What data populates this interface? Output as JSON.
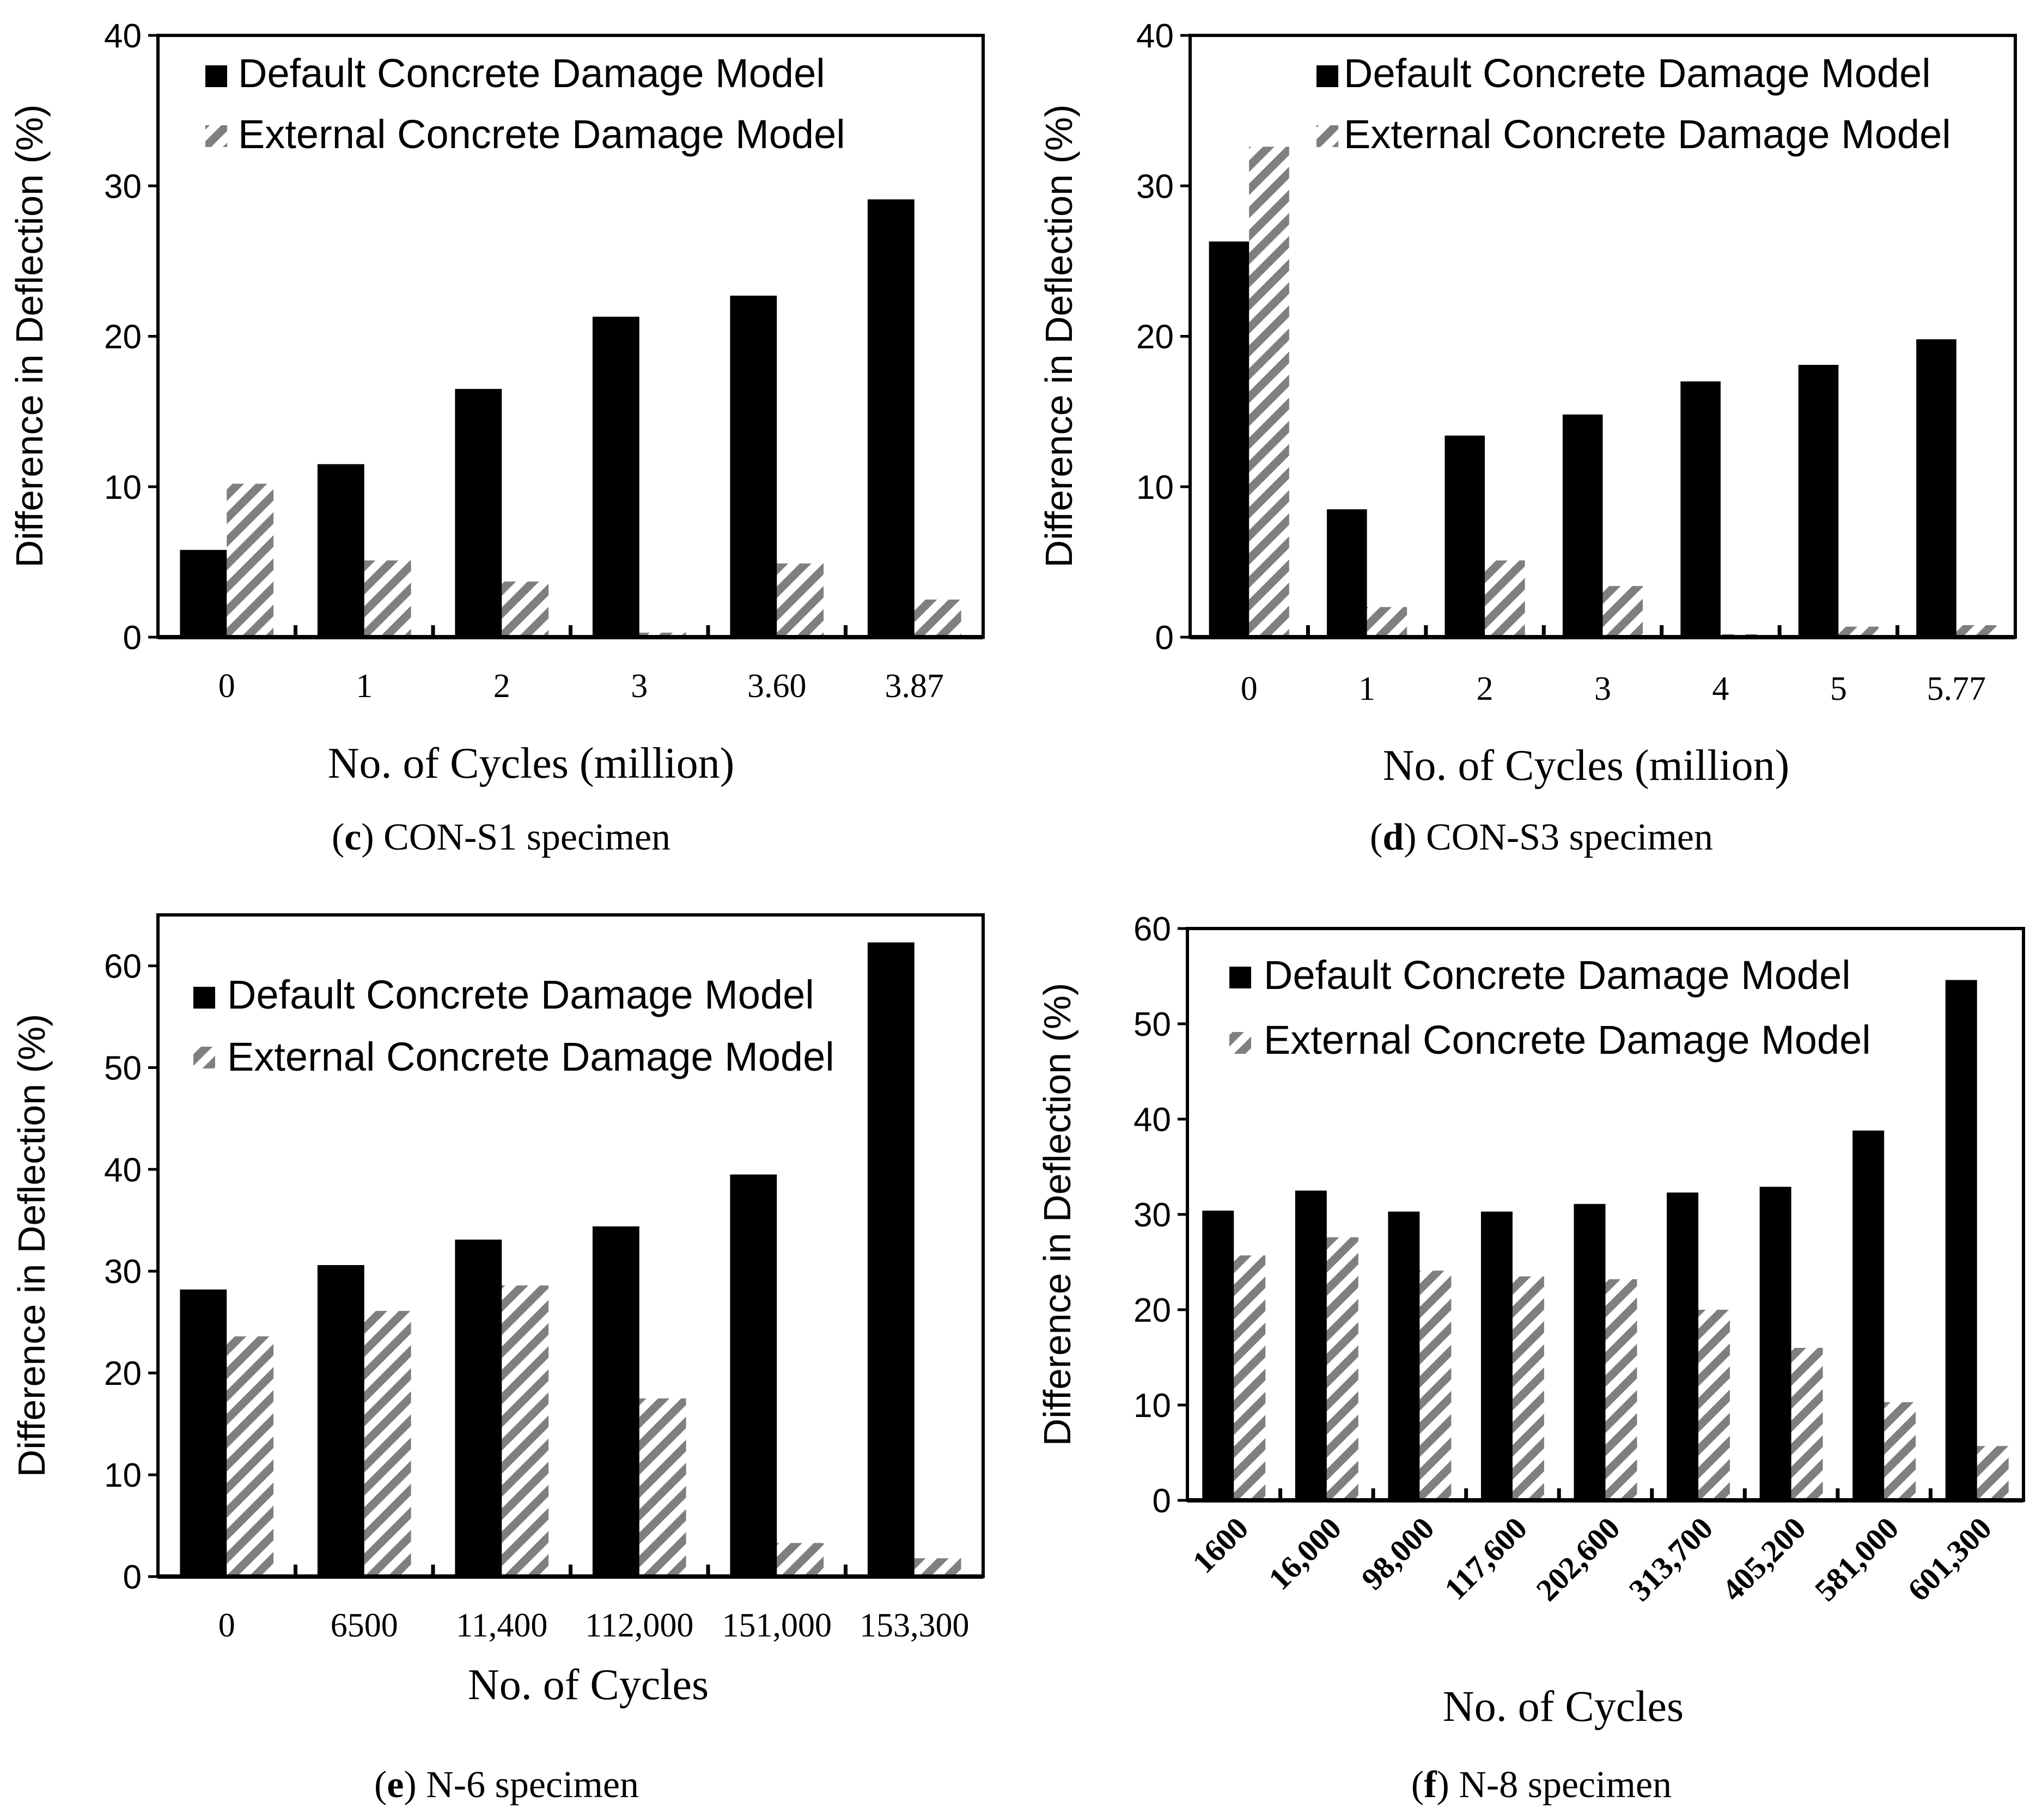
{
  "colors": {
    "default_series": "#000000",
    "external_stripe": "#7f7f7f",
    "axis": "#000000",
    "background": "#ffffff"
  },
  "chart_data": [
    {
      "panel": "c",
      "type": "bar",
      "caption_letter": "c",
      "caption_text": " CON-S1 specimen",
      "ylabel": "Difference in Deflection (%)",
      "xlabel": "No. of Cycles (million)",
      "ylim": [
        0,
        40
      ],
      "yticks": [
        0,
        10,
        20,
        30,
        40
      ],
      "categories": [
        "0",
        "1",
        "2",
        "3",
        "3.60",
        "3.87"
      ],
      "series": [
        {
          "name": "Default Concrete Damage Model",
          "values": [
            5.8,
            11.5,
            16.5,
            21.3,
            22.7,
            29.1
          ]
        },
        {
          "name": "External Concrete Damage Model",
          "values": [
            10.2,
            5.1,
            3.7,
            0.3,
            4.9,
            2.5
          ]
        }
      ],
      "legend": "top-left",
      "grid": false
    },
    {
      "panel": "d",
      "type": "bar",
      "caption_letter": "d",
      "caption_text": " CON-S3 specimen",
      "ylabel": "Difference in Deflection (%)",
      "xlabel": "No. of Cycles (million)",
      "ylim": [
        0,
        40
      ],
      "yticks": [
        0,
        10,
        20,
        30,
        40
      ],
      "categories": [
        "0",
        "1",
        "2",
        "3",
        "4",
        "5",
        "5.77"
      ],
      "series": [
        {
          "name": "Default Concrete Damage Model",
          "values": [
            26.3,
            8.5,
            13.4,
            14.8,
            17.0,
            18.1,
            19.8
          ]
        },
        {
          "name": "External Concrete Damage Model",
          "values": [
            32.6,
            2.0,
            5.1,
            3.4,
            0.2,
            0.7,
            0.8
          ]
        }
      ],
      "legend": "top-right",
      "grid": false
    },
    {
      "panel": "e",
      "type": "bar",
      "caption_letter": "e",
      "caption_text": " N-6 specimen",
      "ylabel": "Difference in Deflection (%)",
      "xlabel": "No. of Cycles",
      "ylim": [
        0,
        65
      ],
      "yticks": [
        0,
        10,
        20,
        30,
        40,
        50,
        60
      ],
      "categories": [
        "0",
        "6500",
        "11,400",
        "112,000",
        "151,000",
        "153,300"
      ],
      "series": [
        {
          "name": "Default Concrete Damage Model",
          "values": [
            28.2,
            30.6,
            33.1,
            34.4,
            39.5,
            62.3
          ]
        },
        {
          "name": "External Concrete Damage Model",
          "values": [
            23.6,
            26.1,
            28.6,
            17.5,
            3.3,
            1.8
          ]
        }
      ],
      "legend": "top-right",
      "grid": false
    },
    {
      "panel": "f",
      "type": "bar",
      "caption_letter": "f",
      "caption_text": " N-8 specimen",
      "ylabel": "Difference in Deflection (%)",
      "xlabel": "No. of Cycles",
      "ylim": [
        0,
        60
      ],
      "yticks": [
        0,
        10,
        20,
        30,
        40,
        50,
        60
      ],
      "categories": [
        "1600",
        "16,000",
        "98,000",
        "117,600",
        "202,600",
        "313,700",
        "405,200",
        "581,000",
        "601,300"
      ],
      "series": [
        {
          "name": "Default Concrete Damage Model",
          "values": [
            30.4,
            32.5,
            30.3,
            30.3,
            31.1,
            32.3,
            32.9,
            38.8,
            54.6
          ]
        },
        {
          "name": "External Concrete Damage Model",
          "values": [
            25.7,
            27.6,
            24.1,
            23.5,
            23.2,
            20.0,
            16.0,
            10.3,
            5.7
          ]
        }
      ],
      "legend": "top-left",
      "grid": false,
      "rotated_ticks": true
    }
  ]
}
